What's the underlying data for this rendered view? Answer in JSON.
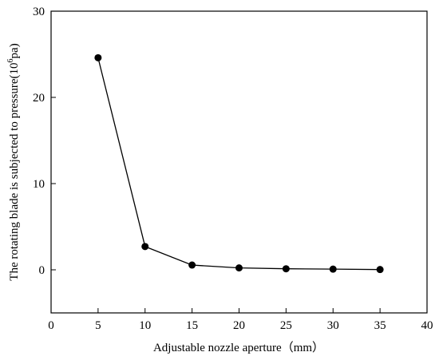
{
  "chart_data": {
    "type": "line",
    "x": [
      5,
      10,
      15,
      20,
      25,
      30,
      35
    ],
    "series": [
      {
        "values": [
          24.6,
          2.7,
          0.55,
          0.22,
          0.12,
          0.08,
          0.03
        ],
        "color": "#000000"
      }
    ],
    "xlabel": "Adjustable nozzle aperture（mm）",
    "ylabel_main": "The rotating blade is subjected to pressure(10",
    "ylabel_sup": "6",
    "ylabel_tail": "pa)",
    "xlim": [
      0,
      40
    ],
    "ylim": [
      -5,
      30
    ],
    "xticks": [
      0,
      5,
      10,
      15,
      20,
      25,
      30,
      35,
      40
    ],
    "yticks": [
      0,
      10,
      20,
      30
    ],
    "xtick_labels": [
      "0",
      "5",
      "10",
      "15",
      "20",
      "25",
      "30",
      "35",
      "40"
    ],
    "ytick_labels": [
      "0",
      "10",
      "20",
      "30"
    ],
    "grid": false,
    "marker": "circle"
  }
}
